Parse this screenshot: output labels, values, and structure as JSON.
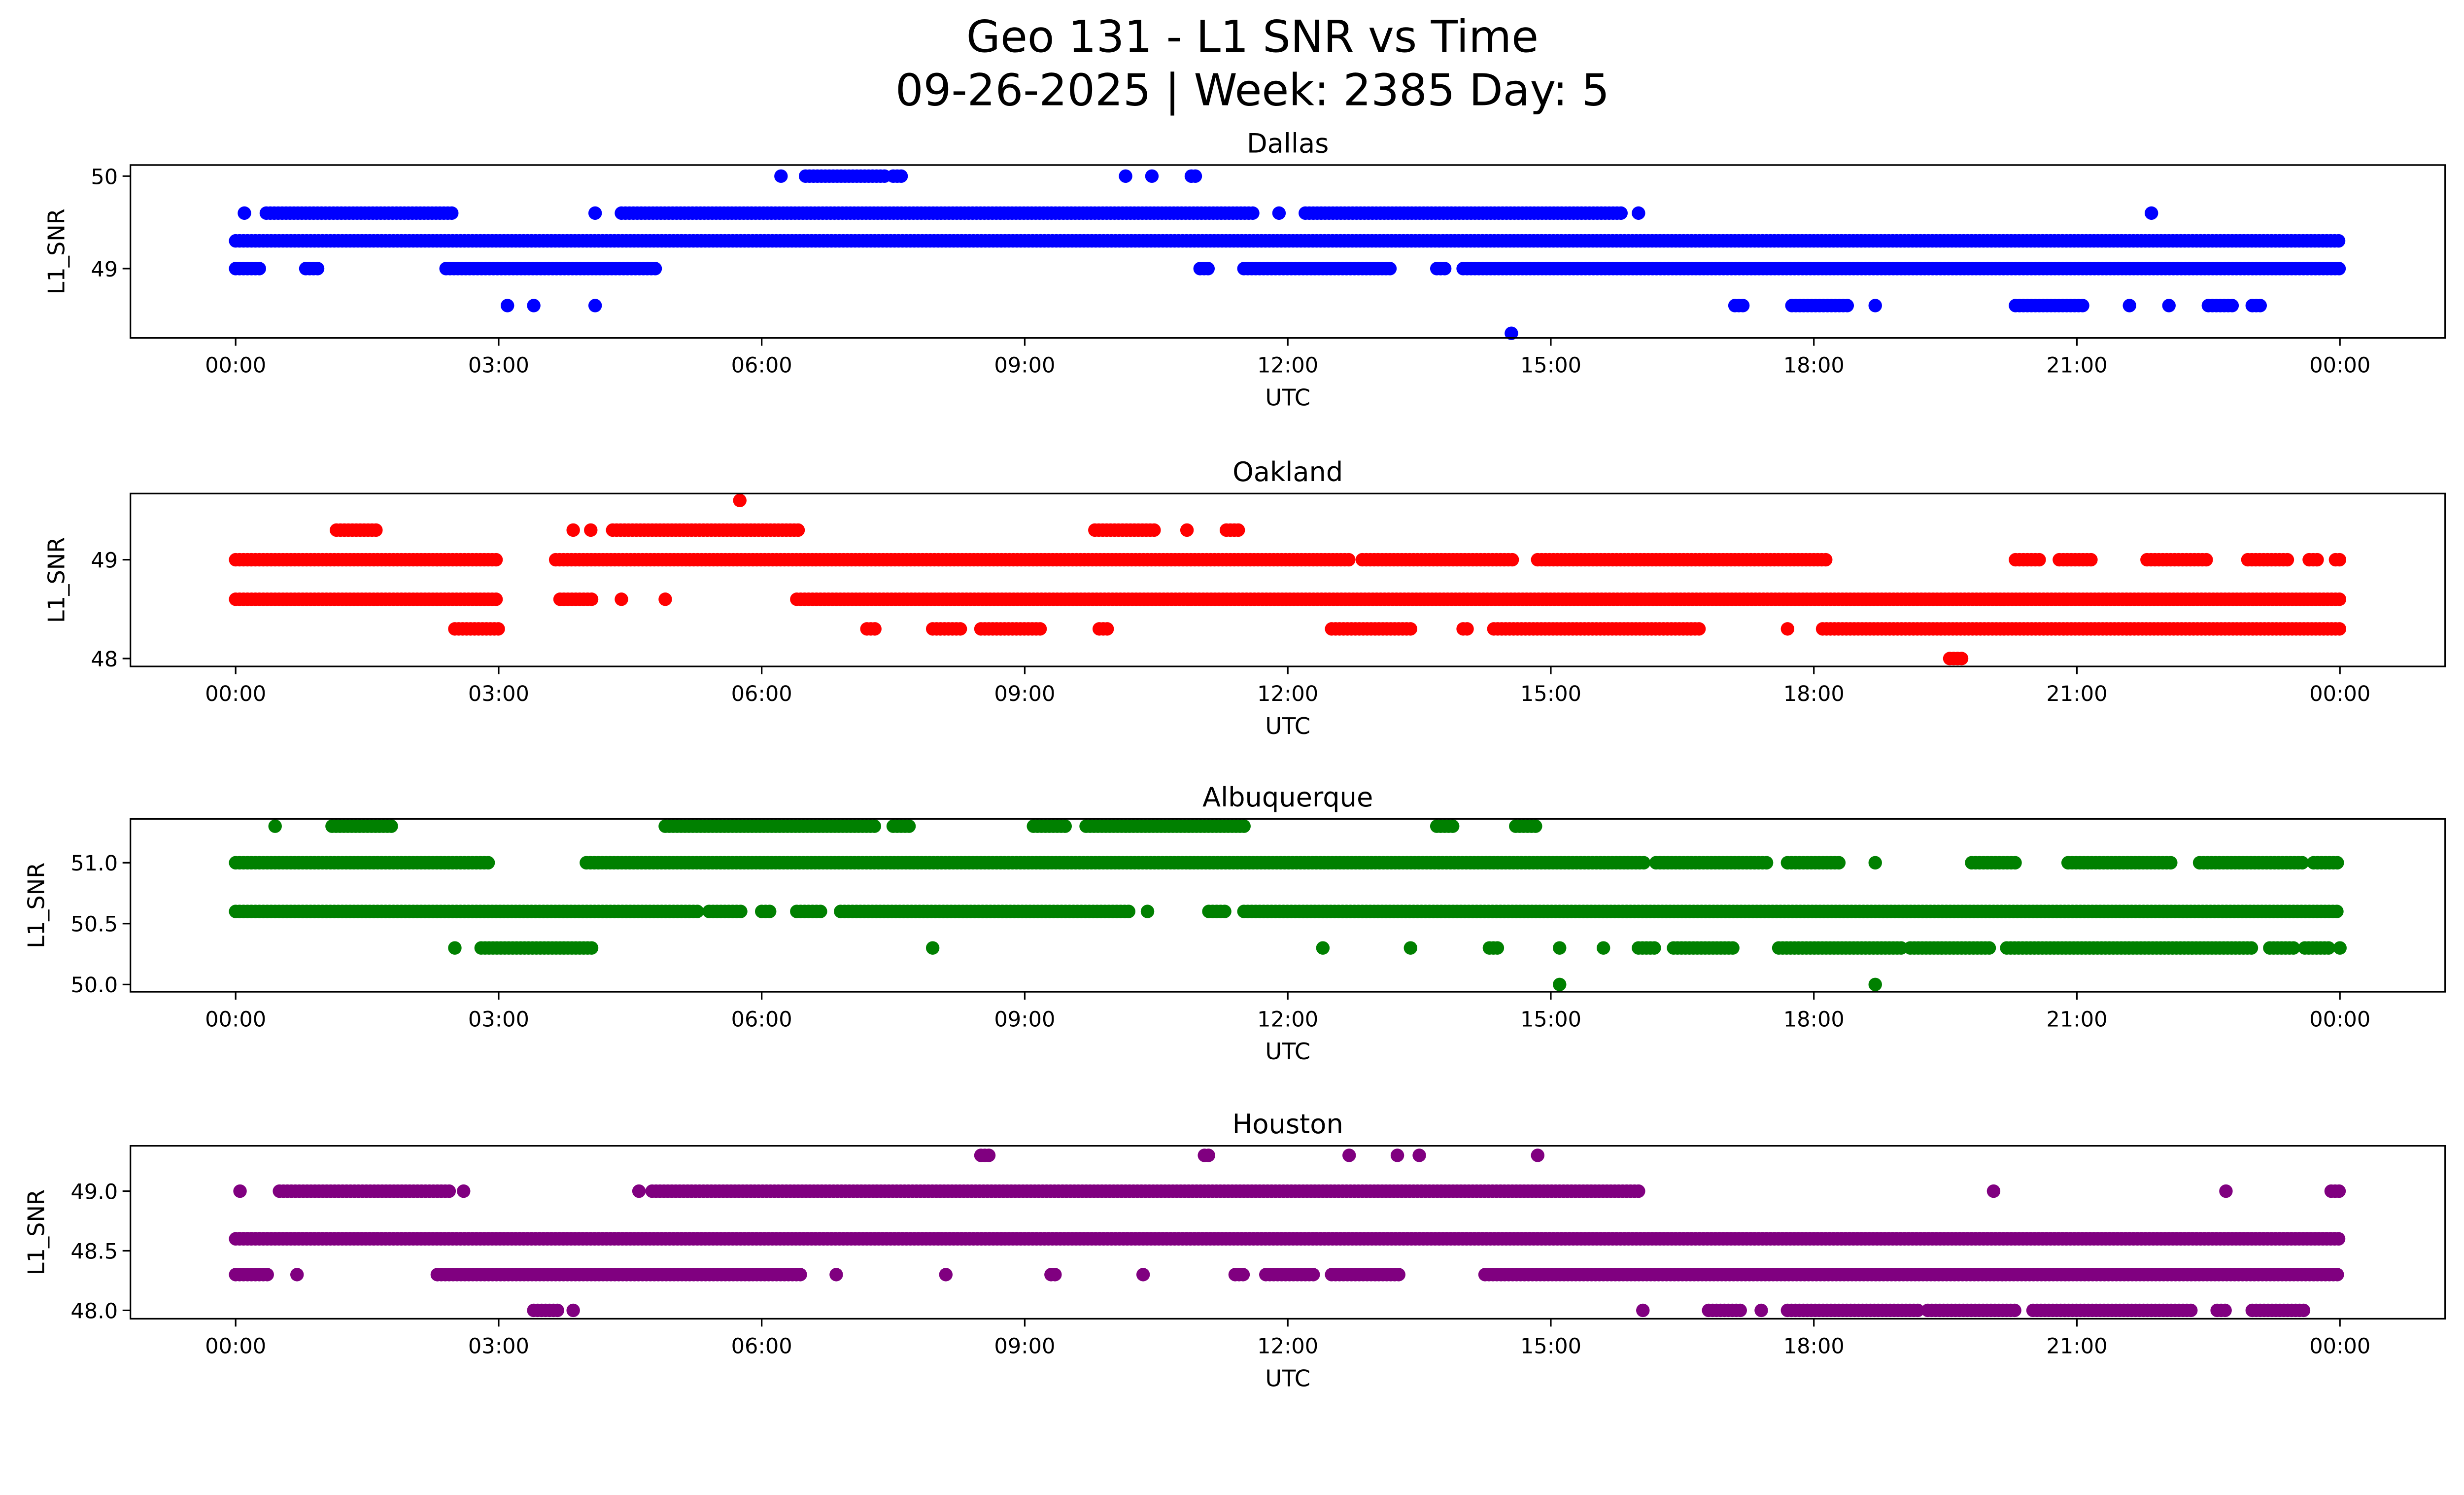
{
  "title_line1": "Geo 131 - L1 SNR vs Time",
  "title_line2": "09-26-2025 | Week: 2385 Day: 5",
  "chart_data": [
    {
      "type": "scatter",
      "title": "Dallas",
      "xlabel": "UTC",
      "ylabel": "L1_SNR",
      "color": "#0000ff",
      "xlim_hours": [
        -1.2,
        25.2
      ],
      "ylim": [
        48.25,
        50.12
      ],
      "yticks": [
        49,
        50
      ],
      "ytick_labels": [
        "49",
        "50"
      ],
      "xticks_hours": [
        0,
        3,
        6,
        9,
        12,
        15,
        18,
        21,
        24
      ],
      "xtick_labels": [
        "00:00",
        "03:00",
        "06:00",
        "09:00",
        "12:00",
        "15:00",
        "18:00",
        "21:00",
        "00:00"
      ],
      "levels": [
        {
          "snr": 50.0,
          "runs_hours": [
            [
              6.22,
              6.22
            ],
            [
              6.5,
              7.4
            ],
            [
              7.5,
              7.6
            ],
            [
              10.15,
              10.15
            ],
            [
              10.45,
              10.45
            ],
            [
              10.9,
              10.95
            ]
          ]
        },
        {
          "snr": 49.6,
          "runs_hours": [
            [
              0.1,
              0.1
            ],
            [
              0.35,
              2.5
            ],
            [
              4.1,
              4.1
            ],
            [
              4.4,
              11.6
            ],
            [
              11.9,
              11.9
            ],
            [
              12.2,
              15.8
            ],
            [
              16.0,
              16.0
            ],
            [
              21.85,
              21.85
            ]
          ]
        },
        {
          "snr": 49.3,
          "runs_hours": [
            [
              0,
              24
            ]
          ]
        },
        {
          "snr": 49.0,
          "runs_hours": [
            [
              0,
              0.3
            ],
            [
              0.8,
              0.95
            ],
            [
              2.4,
              4.8
            ],
            [
              11.0,
              11.1
            ],
            [
              11.5,
              13.2
            ],
            [
              13.7,
              13.8
            ],
            [
              14.0,
              24
            ]
          ]
        },
        {
          "snr": 48.6,
          "runs_hours": [
            [
              3.1,
              3.1
            ],
            [
              3.4,
              3.4
            ],
            [
              4.1,
              4.1
            ],
            [
              17.1,
              17.2
            ],
            [
              17.75,
              18.4
            ],
            [
              18.7,
              18.7
            ],
            [
              20.3,
              21.1
            ],
            [
              21.6,
              21.6
            ],
            [
              22.05,
              22.05
            ],
            [
              22.5,
              22.8
            ],
            [
              23.0,
              23.1
            ]
          ]
        },
        {
          "snr": 48.3,
          "runs_hours": [
            [
              14.55,
              14.55
            ]
          ]
        }
      ]
    },
    {
      "type": "scatter",
      "title": "Oakland",
      "xlabel": "UTC",
      "ylabel": "L1_SNR",
      "color": "#ff0000",
      "xlim_hours": [
        -1.2,
        25.2
      ],
      "ylim": [
        47.92,
        49.67
      ],
      "yticks": [
        48,
        49
      ],
      "ytick_labels": [
        "48",
        "49"
      ],
      "xticks_hours": [
        0,
        3,
        6,
        9,
        12,
        15,
        18,
        21,
        24
      ],
      "xtick_labels": [
        "00:00",
        "03:00",
        "06:00",
        "09:00",
        "12:00",
        "15:00",
        "18:00",
        "21:00",
        "00:00"
      ],
      "levels": [
        {
          "snr": 49.6,
          "runs_hours": [
            [
              5.75,
              5.75
            ]
          ]
        },
        {
          "snr": 49.3,
          "runs_hours": [
            [
              1.15,
              1.6
            ],
            [
              3.85,
              3.85
            ],
            [
              4.05,
              4.05
            ],
            [
              4.3,
              6.45
            ],
            [
              9.8,
              10.5
            ],
            [
              10.85,
              10.85
            ],
            [
              11.3,
              11.45
            ]
          ]
        },
        {
          "snr": 49.0,
          "runs_hours": [
            [
              0,
              3.0
            ],
            [
              3.65,
              12.7
            ],
            [
              12.85,
              14.6
            ],
            [
              14.85,
              18.15
            ],
            [
              20.3,
              20.6
            ],
            [
              20.8,
              21.2
            ],
            [
              21.8,
              22.5
            ],
            [
              22.95,
              23.4
            ],
            [
              23.65,
              23.75
            ],
            [
              23.95,
              24
            ]
          ]
        },
        {
          "snr": 48.6,
          "runs_hours": [
            [
              0,
              3.0
            ],
            [
              3.7,
              4.1
            ],
            [
              4.4,
              4.4
            ],
            [
              4.9,
              4.9
            ],
            [
              6.4,
              24
            ]
          ]
        },
        {
          "snr": 48.3,
          "runs_hours": [
            [
              2.5,
              3.0
            ],
            [
              7.2,
              7.3
            ],
            [
              7.95,
              8.3
            ],
            [
              8.5,
              9.2
            ],
            [
              9.85,
              9.95
            ],
            [
              12.5,
              13.4
            ],
            [
              14.0,
              14.05
            ],
            [
              14.35,
              16.7
            ],
            [
              17.7,
              17.7
            ],
            [
              18.1,
              24
            ]
          ]
        },
        {
          "snr": 48.0,
          "runs_hours": [
            [
              19.55,
              19.7
            ]
          ]
        }
      ]
    },
    {
      "type": "scatter",
      "title": "Albuquerque",
      "xlabel": "UTC",
      "ylabel": "L1_SNR",
      "color": "#008000",
      "xlim_hours": [
        -1.2,
        25.2
      ],
      "ylim": [
        49.94,
        51.36
      ],
      "yticks": [
        50.0,
        50.5,
        51.0
      ],
      "ytick_labels": [
        "50.0",
        "50.5",
        "51.0"
      ],
      "xticks_hours": [
        0,
        3,
        6,
        9,
        12,
        15,
        18,
        21,
        24
      ],
      "xtick_labels": [
        "00:00",
        "03:00",
        "06:00",
        "09:00",
        "12:00",
        "15:00",
        "18:00",
        "21:00",
        "00:00"
      ],
      "levels": [
        {
          "snr": 51.3,
          "runs_hours": [
            [
              0.45,
              0.45
            ],
            [
              1.1,
              1.8
            ],
            [
              4.9,
              7.3
            ],
            [
              7.5,
              7.7
            ],
            [
              9.1,
              9.5
            ],
            [
              9.7,
              11.5
            ],
            [
              13.7,
              13.9
            ],
            [
              14.6,
              14.85
            ]
          ]
        },
        {
          "snr": 51.0,
          "runs_hours": [
            [
              0,
              2.9
            ],
            [
              4.0,
              16.1
            ],
            [
              16.2,
              17.5
            ],
            [
              17.7,
              18.3
            ],
            [
              18.7,
              18.7
            ],
            [
              19.8,
              20.3
            ],
            [
              20.9,
              22.1
            ],
            [
              22.4,
              23.6
            ],
            [
              23.7,
              24
            ]
          ]
        },
        {
          "snr": 50.6,
          "runs_hours": [
            [
              0,
              5.3
            ],
            [
              5.4,
              5.8
            ],
            [
              6.0,
              6.1
            ],
            [
              6.4,
              6.7
            ],
            [
              6.9,
              10.2
            ],
            [
              10.4,
              10.4
            ],
            [
              11.1,
              11.3
            ],
            [
              11.5,
              24
            ]
          ]
        },
        {
          "snr": 50.3,
          "runs_hours": [
            [
              2.5,
              2.5
            ],
            [
              2.8,
              4.1
            ],
            [
              7.95,
              7.95
            ],
            [
              12.4,
              12.4
            ],
            [
              13.4,
              13.4
            ],
            [
              14.3,
              14.4
            ],
            [
              15.1,
              15.1
            ],
            [
              15.6,
              15.6
            ],
            [
              16.0,
              16.2
            ],
            [
              16.4,
              17.1
            ],
            [
              17.6,
              19.0
            ],
            [
              19.1,
              20.0
            ],
            [
              20.2,
              23.0
            ],
            [
              23.2,
              23.5
            ],
            [
              23.6,
              23.9
            ],
            [
              24,
              24
            ]
          ]
        },
        {
          "snr": 50.0,
          "runs_hours": [
            [
              15.1,
              15.1
            ],
            [
              18.7,
              18.7
            ]
          ]
        }
      ]
    },
    {
      "type": "scatter",
      "title": "Houston",
      "xlabel": "UTC",
      "ylabel": "L1_SNR",
      "color": "#800080",
      "xlim_hours": [
        -1.2,
        25.2
      ],
      "ylim": [
        47.93,
        49.38
      ],
      "yticks": [
        48.0,
        48.5,
        49.0
      ],
      "ytick_labels": [
        "48.0",
        "48.5",
        "49.0"
      ],
      "xticks_hours": [
        0,
        3,
        6,
        9,
        12,
        15,
        18,
        21,
        24
      ],
      "xtick_labels": [
        "00:00",
        "03:00",
        "06:00",
        "09:00",
        "12:00",
        "15:00",
        "18:00",
        "21:00",
        "00:00"
      ],
      "levels": [
        {
          "snr": 49.3,
          "runs_hours": [
            [
              8.5,
              8.6
            ],
            [
              11.05,
              11.1
            ],
            [
              12.7,
              12.7
            ],
            [
              13.25,
              13.25
            ],
            [
              13.5,
              13.5
            ],
            [
              14.85,
              14.85
            ]
          ]
        },
        {
          "snr": 49.0,
          "runs_hours": [
            [
              0.05,
              0.05
            ],
            [
              0.5,
              2.45
            ],
            [
              2.6,
              2.6
            ],
            [
              4.6,
              4.6
            ],
            [
              4.75,
              16.0
            ],
            [
              20.05,
              20.05
            ],
            [
              22.7,
              22.7
            ],
            [
              23.9,
              24
            ]
          ]
        },
        {
          "snr": 48.6,
          "runs_hours": [
            [
              0,
              24
            ]
          ]
        },
        {
          "snr": 48.3,
          "runs_hours": [
            [
              0,
              0.4
            ],
            [
              0.7,
              0.7
            ],
            [
              2.3,
              6.45
            ],
            [
              6.85,
              6.85
            ],
            [
              8.1,
              8.1
            ],
            [
              9.3,
              9.35
            ],
            [
              10.35,
              10.35
            ],
            [
              11.4,
              11.5
            ],
            [
              11.75,
              12.3
            ],
            [
              12.5,
              13.3
            ],
            [
              14.25,
              24
            ]
          ]
        },
        {
          "snr": 48.0,
          "runs_hours": [
            [
              3.4,
              3.7
            ],
            [
              3.85,
              3.85
            ],
            [
              16.05,
              16.05
            ],
            [
              16.8,
              17.2
            ],
            [
              17.4,
              17.4
            ],
            [
              17.7,
              19.2
            ],
            [
              19.3,
              20.3
            ],
            [
              20.5,
              22.3
            ],
            [
              22.6,
              22.7
            ],
            [
              23.0,
              23.6
            ]
          ]
        }
      ]
    }
  ]
}
